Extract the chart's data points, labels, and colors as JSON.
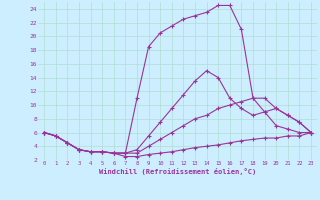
{
  "background_color": "#cceeff",
  "grid_color": "#b0ddd0",
  "line_color": "#993399",
  "xlim": [
    -0.5,
    23.5
  ],
  "ylim": [
    2,
    25
  ],
  "xlabel": "Windchill (Refroidissement éolien,°C)",
  "xticks": [
    0,
    1,
    2,
    3,
    4,
    5,
    6,
    7,
    8,
    9,
    10,
    11,
    12,
    13,
    14,
    15,
    16,
    17,
    18,
    19,
    20,
    21,
    22,
    23
  ],
  "yticks": [
    2,
    4,
    6,
    8,
    10,
    12,
    14,
    16,
    18,
    20,
    22,
    24
  ],
  "line1_x": [
    0,
    1,
    2,
    3,
    4,
    5,
    6,
    7,
    8,
    9,
    10,
    11,
    12,
    13,
    14,
    15,
    16,
    17,
    18,
    19,
    20,
    21,
    22,
    23
  ],
  "line1_y": [
    6.0,
    5.5,
    4.5,
    3.5,
    3.2,
    3.2,
    3.0,
    2.5,
    2.5,
    2.8,
    3.0,
    3.2,
    3.5,
    3.8,
    4.0,
    4.2,
    4.5,
    4.8,
    5.0,
    5.2,
    5.2,
    5.5,
    5.5,
    6.0
  ],
  "line2_x": [
    0,
    1,
    2,
    3,
    4,
    5,
    6,
    7,
    8,
    9,
    10,
    11,
    12,
    13,
    14,
    15,
    16,
    17,
    18,
    19,
    20,
    21,
    22,
    23
  ],
  "line2_y": [
    6.0,
    5.5,
    4.5,
    3.5,
    3.2,
    3.2,
    3.0,
    3.0,
    3.5,
    5.5,
    7.5,
    9.5,
    11.5,
    13.5,
    15.0,
    14.0,
    11.0,
    9.5,
    8.5,
    9.0,
    9.5,
    8.5,
    7.5,
    6.0
  ],
  "line3_x": [
    0,
    1,
    2,
    3,
    4,
    5,
    6,
    7,
    8,
    9,
    10,
    11,
    12,
    13,
    14,
    15,
    16,
    17,
    18,
    19,
    20,
    21,
    22,
    23
  ],
  "line3_y": [
    6.0,
    5.5,
    4.5,
    3.5,
    3.2,
    3.2,
    3.0,
    3.0,
    11.0,
    18.5,
    20.5,
    21.5,
    22.5,
    23.0,
    23.5,
    24.5,
    24.5,
    21.0,
    11.0,
    9.0,
    7.0,
    6.5,
    6.0,
    6.0
  ],
  "line4_x": [
    0,
    1,
    2,
    3,
    4,
    5,
    6,
    7,
    8,
    9,
    10,
    11,
    12,
    13,
    14,
    15,
    16,
    17,
    18,
    19,
    20,
    21,
    22,
    23
  ],
  "line4_y": [
    6.0,
    5.5,
    4.5,
    3.5,
    3.2,
    3.2,
    3.0,
    3.0,
    3.0,
    4.0,
    5.0,
    6.0,
    7.0,
    8.0,
    8.5,
    9.5,
    10.0,
    10.5,
    11.0,
    11.0,
    9.5,
    8.5,
    7.5,
    6.0
  ]
}
